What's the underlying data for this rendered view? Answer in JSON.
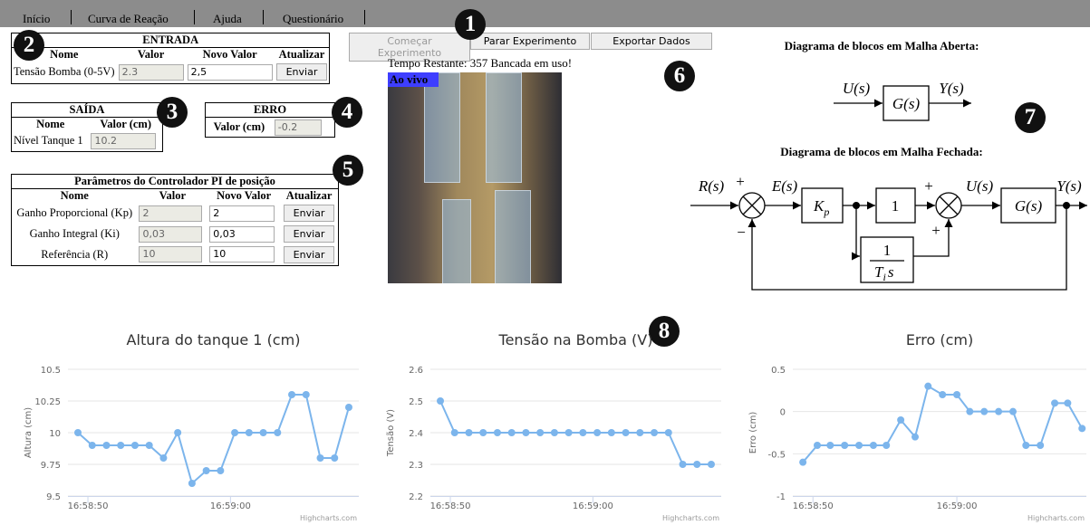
{
  "menu": [
    "Início",
    "Curva de Reação",
    "Ajuda",
    "Questionário"
  ],
  "markers": [
    1,
    2,
    3,
    4,
    5,
    6,
    7,
    8
  ],
  "entrada": {
    "title": "ENTRADA",
    "headers": [
      "Nome",
      "Valor",
      "Novo Valor",
      "Atualizar"
    ],
    "row": [
      "Tensão Bomba (0-5V)",
      2.3,
      "2,5",
      "Enviar"
    ]
  },
  "saida": {
    "title": "SAÍDA",
    "headers": [
      "Nome",
      "Valor (cm)"
    ],
    "row": [
      "Nível Tanque 1",
      10.2
    ]
  },
  "erro": {
    "title": "ERRO",
    "label": "Valor (cm)",
    "value": -0.2
  },
  "params": {
    "title": "Parâmetros do Controlador PI de posição",
    "headers": [
      "Nome",
      "Valor",
      "Novo Valor",
      "Atualizar"
    ],
    "rows": [
      [
        "Ganho Proporcional (Kp)",
        2,
        2,
        "Enviar"
      ],
      [
        "Ganho Integral (Ki)",
        "0,03",
        "0,03",
        "Enviar"
      ],
      [
        "Referência (R)",
        10,
        10,
        "Enviar"
      ]
    ]
  },
  "buttons": [
    "Começar Experimento",
    "Parar Experimento",
    "Exportar Dados"
  ],
  "status": {
    "label": "Tempo Restante:",
    "seconds": 357,
    "message": "Bancada em uso!"
  },
  "live": "Ao vivo",
  "diagram": {
    "open_title": "Diagrama de blocos em Malha Aberta:",
    "closed_title": "Diagrama de blocos em Malha Fechada:",
    "u": "U(s)",
    "g": "G(s)",
    "y": "Y(s)",
    "r": "R(s)",
    "e": "E(s)",
    "k": "K",
    "k_sub": "p",
    "one": "1",
    "t": "T",
    "t_sub": "i",
    "s": "s",
    "plus": "+",
    "minus": "−"
  },
  "credits": "Highcharts.com",
  "chart_data": [
    {
      "type": "line",
      "title": "Altura do tanque 1 (cm)",
      "y_label": "Altura (cm)",
      "color": "#7cb5ec",
      "x": [
        61129.3,
        61130.3,
        61131.3,
        61132.3,
        61133.3,
        61134.3,
        61135.3,
        61136.3,
        61137.3,
        61138.3,
        61139.3,
        61140.3,
        61141.3,
        61142.3,
        61143.3,
        61144.3,
        61145.3,
        61146.3,
        61147.3,
        61148.3
      ],
      "values": [
        10,
        9.9,
        9.9,
        9.9,
        9.9,
        9.9,
        9.8,
        10,
        9.6,
        9.7,
        9.7,
        10,
        10,
        10,
        10,
        10.3,
        10.3,
        9.8,
        9.8,
        10.2
      ],
      "xlim": [
        61128.6,
        61149.0
      ],
      "xticks": [
        {
          "value": 61130,
          "label": "16:58:50"
        },
        {
          "value": 61140,
          "label": "16:59:00"
        }
      ],
      "ylim": [
        9.5,
        10.5
      ],
      "yticks": [
        9.5,
        9.75,
        10,
        10.25,
        10.5
      ],
      "grid": true
    },
    {
      "type": "line",
      "title": "Tensão na Bomba (V)",
      "y_label": "Tensão (V)",
      "color": "#7cb5ec",
      "x": [
        61129.3,
        61130.3,
        61131.3,
        61132.3,
        61133.3,
        61134.3,
        61135.3,
        61136.3,
        61137.3,
        61138.3,
        61139.3,
        61140.3,
        61141.3,
        61142.3,
        61143.3,
        61144.3,
        61145.3,
        61146.3,
        61147.3,
        61148.3
      ],
      "values": [
        2.5,
        2.4,
        2.4,
        2.4,
        2.4,
        2.4,
        2.4,
        2.4,
        2.4,
        2.4,
        2.4,
        2.4,
        2.4,
        2.4,
        2.4,
        2.4,
        2.4,
        2.3,
        2.3,
        2.3
      ],
      "xlim": [
        61128.6,
        61149.0
      ],
      "xticks": [
        {
          "value": 61130,
          "label": "16:58:50"
        },
        {
          "value": 61140,
          "label": "16:59:00"
        }
      ],
      "ylim": [
        2.2,
        2.6
      ],
      "yticks": [
        2.2,
        2.3,
        2.4,
        2.5,
        2.6
      ],
      "grid": true
    },
    {
      "type": "line",
      "title": "Erro (cm)",
      "y_label": "Erro (cm)",
      "color": "#7cb5ec",
      "x": [
        61129.3,
        61130.3,
        61131.2,
        61132.2,
        61133.2,
        61134.2,
        61135.1,
        61136.1,
        61137.1,
        61138.0,
        61139.0,
        61140.0,
        61140.9,
        61141.9,
        61142.9,
        61143.9,
        61144.8,
        61145.8,
        61146.8,
        61147.7,
        61148.7
      ],
      "values": [
        -0.6,
        -0.4,
        -0.4,
        -0.4,
        -0.4,
        -0.4,
        -0.4,
        -0.1,
        -0.3,
        0.3,
        0.2,
        0.2,
        0,
        0,
        0,
        0,
        -0.4,
        -0.4,
        0.1,
        0.1,
        -0.2
      ],
      "xlim": [
        61128.6,
        61149.0
      ],
      "xticks": [
        {
          "value": 61130,
          "label": "16:58:50"
        },
        {
          "value": 61140,
          "label": "16:59:00"
        }
      ],
      "ylim": [
        -1,
        0.5
      ],
      "yticks": [
        -1,
        -0.5,
        0,
        0.5
      ],
      "grid": true
    }
  ]
}
